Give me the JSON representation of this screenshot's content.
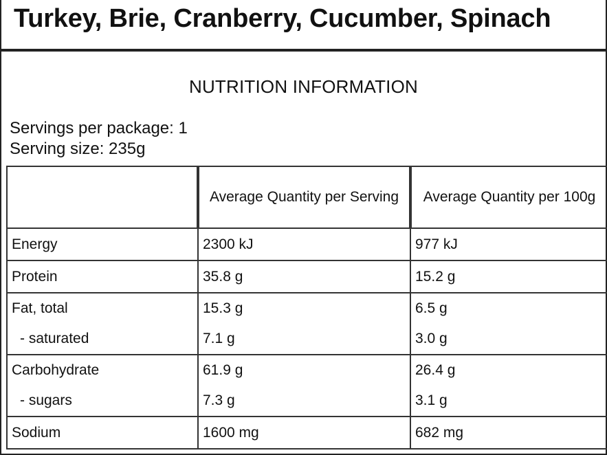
{
  "product": {
    "title": "Turkey, Brie, Cranberry, Cucumber, Spinach"
  },
  "panel": {
    "heading": "NUTRITION INFORMATION",
    "servings_per_package": "Servings per package: 1",
    "serving_size": "Serving size: 235g"
  },
  "table": {
    "headers": [
      "",
      "Average Quantity per Serving",
      "Average Quantity per 100g"
    ],
    "rows": [
      {
        "name": "Energy",
        "per_serving": "2300 kJ",
        "per_100g": "977 kJ"
      },
      {
        "name": "Protein",
        "per_serving": "35.8 g",
        "per_100g": "15.2 g"
      },
      {
        "name": "Fat, total",
        "per_serving": "15.3 g",
        "per_100g": "6.5 g"
      },
      {
        "name": " - saturated",
        "per_serving": "7.1 g",
        "per_100g": "3.0 g"
      },
      {
        "name": "Carbohydrate",
        "per_serving": "61.9 g",
        "per_100g": "26.4 g"
      },
      {
        "name": " - sugars",
        "per_serving": "7.3 g",
        "per_100g": "3.1 g"
      },
      {
        "name": "Sodium",
        "per_serving": "1600 mg",
        "per_100g": "682 mg"
      }
    ]
  }
}
